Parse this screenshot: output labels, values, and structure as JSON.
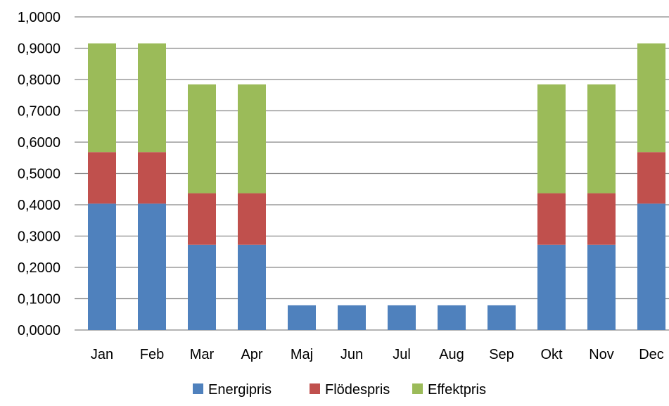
{
  "chart_data": {
    "type": "bar",
    "stacked": true,
    "title": "",
    "xlabel": "",
    "ylabel": "",
    "categories": [
      "Jan",
      "Feb",
      "Mar",
      "Apr",
      "Maj",
      "Jun",
      "Jul",
      "Aug",
      "Sep",
      "Okt",
      "Nov",
      "Dec"
    ],
    "series": [
      {
        "name": "Energipris",
        "color": "#4F81BD",
        "values": [
          0.4036,
          0.4036,
          0.2724,
          0.2724,
          0.0788,
          0.0788,
          0.0788,
          0.0788,
          0.0788,
          0.2724,
          0.2724,
          0.4036
        ]
      },
      {
        "name": "Flödespris",
        "color": "#C0504D",
        "values": [
          0.1645,
          0.1645,
          0.1645,
          0.1645,
          0,
          0,
          0,
          0,
          0,
          0.1645,
          0.1645,
          0.1645
        ]
      },
      {
        "name": "Effektpris",
        "color": "#9BBB59",
        "values": [
          0.3474,
          0.3474,
          0.3474,
          0.3474,
          0,
          0,
          0,
          0,
          0,
          0.3474,
          0.3474,
          0.3474
        ]
      }
    ],
    "ylim": [
      0,
      1
    ],
    "yticks": [
      "0,0000",
      "0,1000",
      "0,2000",
      "0,3000",
      "0,4000",
      "0,5000",
      "0,6000",
      "0,7000",
      "0,8000",
      "0,9000",
      "1,0000"
    ],
    "grid": true,
    "legend_position": "bottom"
  }
}
